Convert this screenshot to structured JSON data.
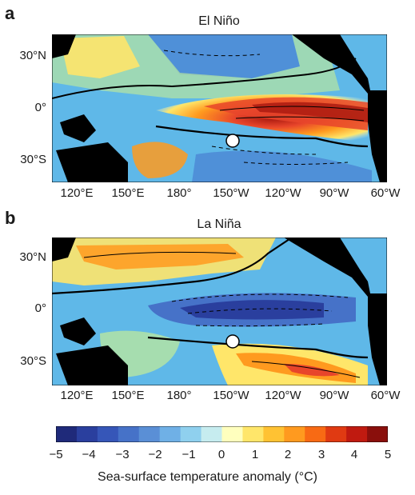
{
  "figure": {
    "panels": [
      {
        "letter": "a",
        "title": "El Niño"
      },
      {
        "letter": "b",
        "title": "La Niña"
      }
    ],
    "lat_labels": [
      "30°N",
      "0°",
      "30°S"
    ],
    "lon_labels": [
      "120°E",
      "150°E",
      "180°",
      "150°W",
      "120°W",
      "90°W",
      "60°W"
    ],
    "marker": {
      "name": "white-circle-marker",
      "lon": "150°W",
      "lat": "~18°S"
    },
    "colorbar": {
      "ticks": [
        "−5",
        "−4",
        "−3",
        "−2",
        "−1",
        "0",
        "1",
        "2",
        "3",
        "4",
        "5"
      ],
      "title": "Sea-surface temperature anomaly (°C)",
      "colors": [
        "#1f2a7a",
        "#2a3f9e",
        "#3656b8",
        "#4672c8",
        "#5a8fd6",
        "#6fb0e6",
        "#8fd0ee",
        "#c6ecef",
        "#ffffbe",
        "#ffe66a",
        "#ffc233",
        "#ff9a1f",
        "#f86a14",
        "#e03a12",
        "#c01a10",
        "#8a0f0c"
      ]
    },
    "colors": {
      "land": "#000000",
      "neutral": "#5fb8e8",
      "warm": "#e8452b",
      "cool": "#3b4fb5"
    }
  }
}
